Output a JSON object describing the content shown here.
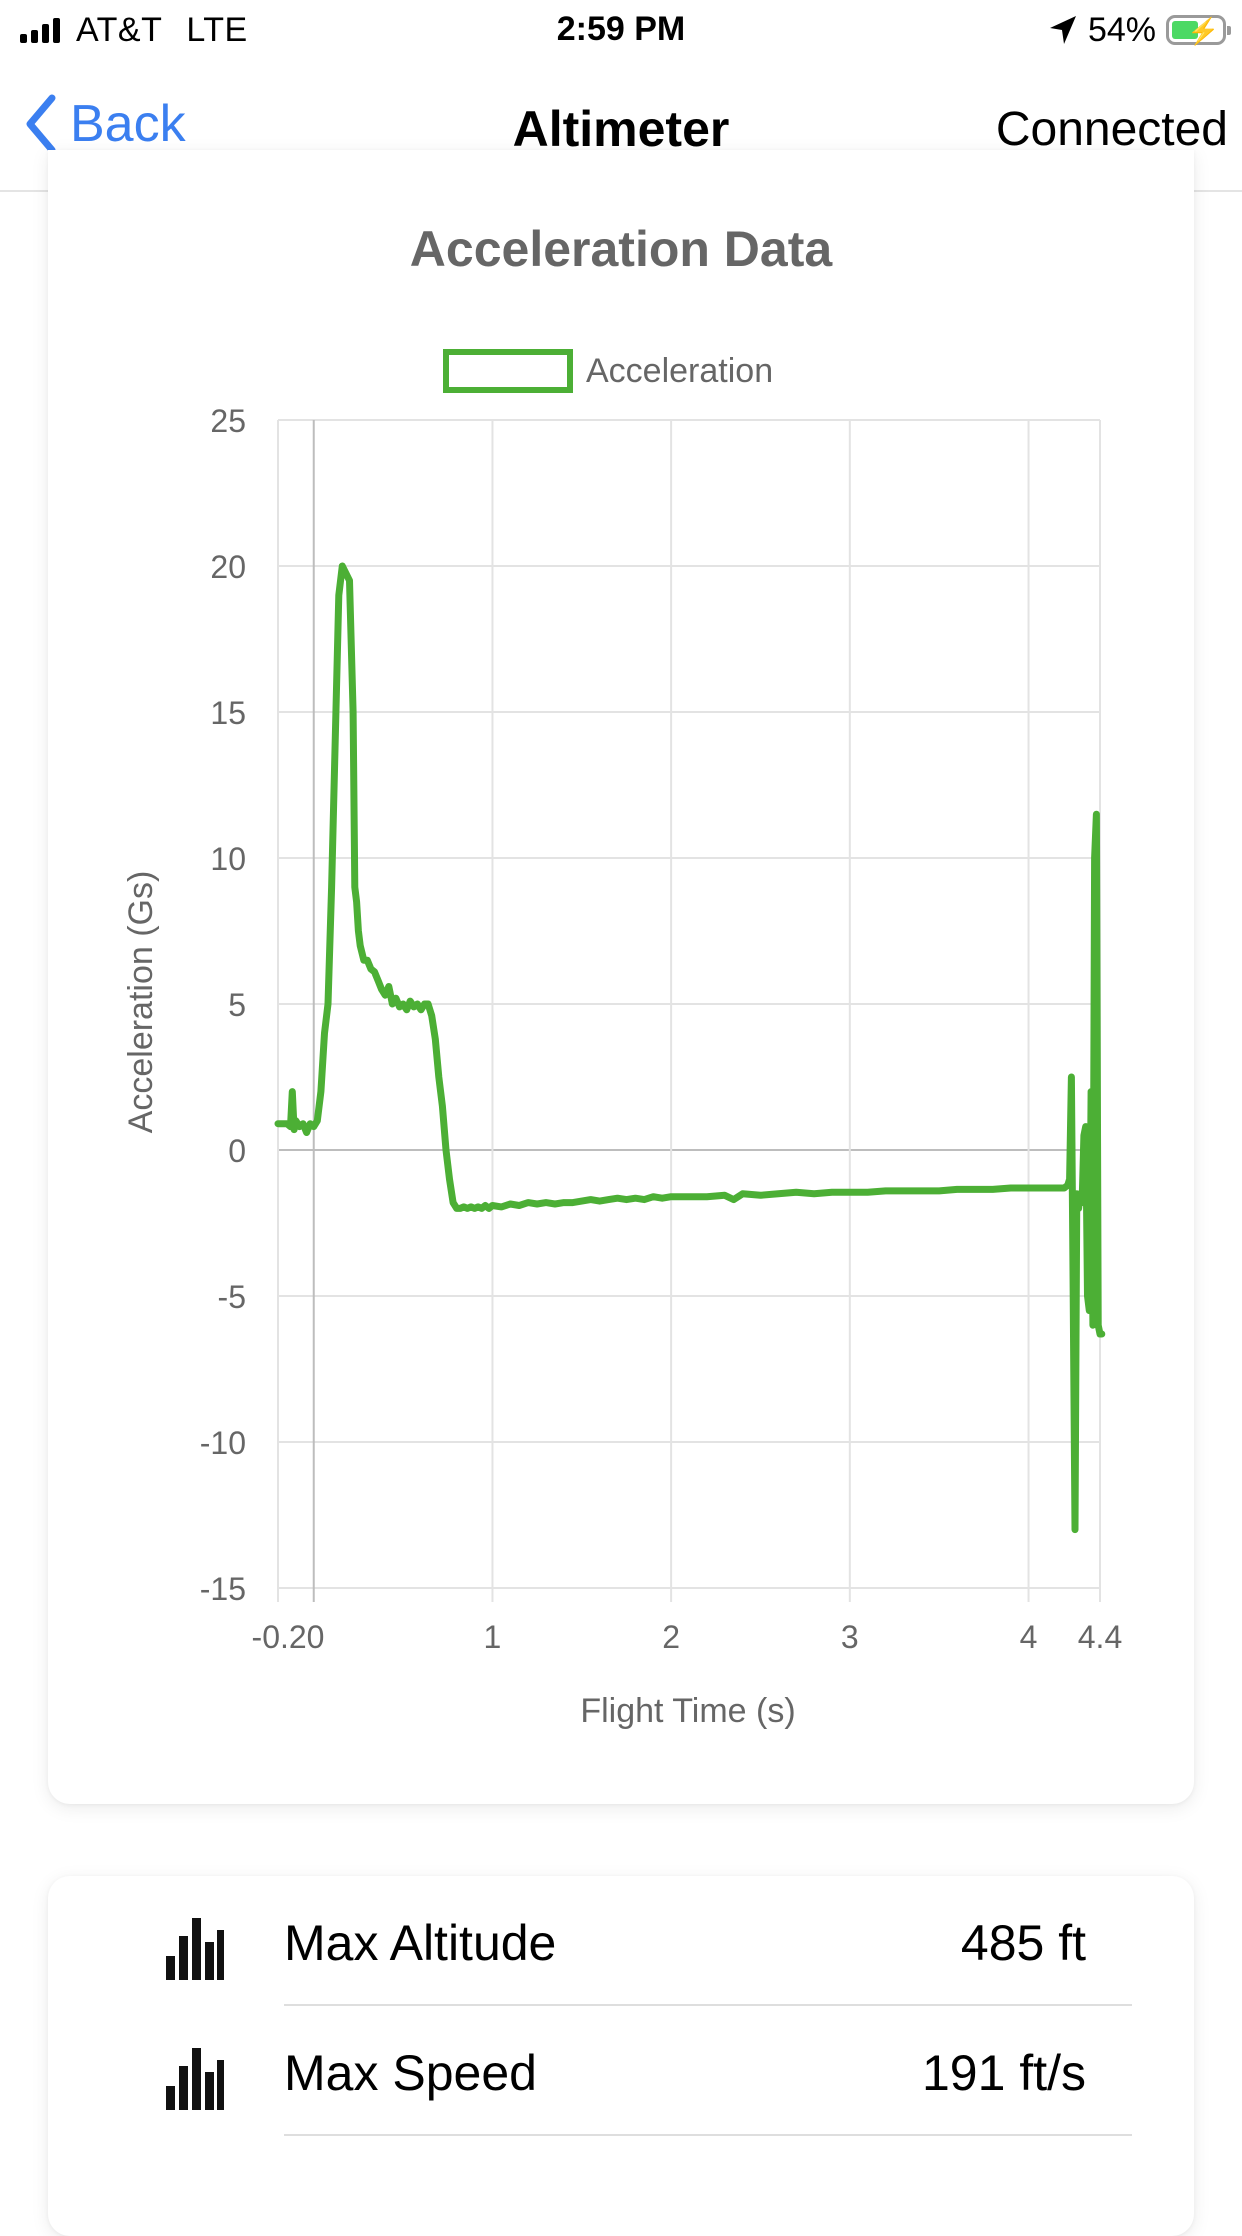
{
  "status_bar": {
    "carrier": "AT&T",
    "network": "LTE",
    "time": "2:59 PM",
    "battery": "54%"
  },
  "nav": {
    "back_label": "Back",
    "title": "Altimeter",
    "status": "Connected"
  },
  "colors": {
    "accent": "#3b7ff0",
    "series": "#4caf35",
    "battery": "#4cd964"
  },
  "chart_data": {
    "type": "line",
    "title": "Acceleration Data",
    "xlabel": "Flight Time (s)",
    "ylabel": "Acceleration (Gs)",
    "legend": "top",
    "grid": true,
    "xlim": [
      -0.2,
      4.4
    ],
    "ylim": [
      -15,
      25
    ],
    "x_ticks": [
      -0.2,
      0,
      1,
      2,
      3,
      4,
      4.4
    ],
    "x_tick_labels": [
      "-0.20",
      "",
      "1",
      "2",
      "3",
      "4",
      "4.4"
    ],
    "y_ticks": [
      25,
      20,
      15,
      10,
      5,
      0,
      -5,
      -10,
      -15
    ],
    "y_tick_labels": [
      "25",
      "20",
      "15",
      "10",
      "5",
      "0",
      "-5",
      "-10",
      "-15"
    ],
    "series": [
      {
        "name": "Acceleration",
        "x": [
          -0.2,
          -0.15,
          -0.13,
          -0.12,
          -0.11,
          -0.1,
          -0.08,
          -0.06,
          -0.04,
          -0.02,
          0.0,
          0.02,
          0.04,
          0.06,
          0.08,
          0.1,
          0.12,
          0.14,
          0.16,
          0.2,
          0.22,
          0.23,
          0.24,
          0.25,
          0.26,
          0.28,
          0.3,
          0.32,
          0.34,
          0.36,
          0.38,
          0.4,
          0.42,
          0.44,
          0.46,
          0.48,
          0.5,
          0.52,
          0.54,
          0.56,
          0.58,
          0.6,
          0.62,
          0.64,
          0.66,
          0.68,
          0.7,
          0.72,
          0.74,
          0.76,
          0.78,
          0.8,
          0.82,
          0.84,
          0.86,
          0.88,
          0.9,
          0.92,
          0.94,
          0.96,
          0.98,
          1.0,
          1.05,
          1.1,
          1.15,
          1.2,
          1.25,
          1.3,
          1.35,
          1.4,
          1.45,
          1.5,
          1.55,
          1.6,
          1.65,
          1.7,
          1.75,
          1.8,
          1.85,
          1.9,
          1.95,
          2.0,
          2.1,
          2.2,
          2.3,
          2.35,
          2.4,
          2.5,
          2.6,
          2.7,
          2.8,
          2.9,
          3.0,
          3.1,
          3.2,
          3.3,
          3.4,
          3.5,
          3.6,
          3.7,
          3.8,
          3.9,
          4.0,
          4.1,
          4.2,
          4.22,
          4.23,
          4.24,
          4.25,
          4.26,
          4.27,
          4.28,
          4.29,
          4.3,
          4.31,
          4.32,
          4.33,
          4.34,
          4.35,
          4.36,
          4.37,
          4.38,
          4.39,
          4.4,
          4.41
        ],
        "y": [
          0.9,
          0.9,
          0.8,
          2.0,
          0.7,
          1.0,
          0.8,
          0.9,
          0.6,
          0.9,
          0.8,
          1.0,
          2.0,
          4.0,
          5.0,
          9.0,
          14.0,
          19.0,
          20.0,
          19.5,
          15.0,
          9.0,
          8.5,
          7.5,
          7.0,
          6.5,
          6.5,
          6.2,
          6.1,
          5.8,
          5.5,
          5.3,
          5.6,
          5.0,
          5.2,
          4.9,
          5.0,
          4.8,
          5.1,
          4.9,
          5.0,
          4.8,
          5.0,
          5.0,
          4.6,
          3.8,
          2.5,
          1.5,
          0.0,
          -1.0,
          -1.8,
          -2.0,
          -2.0,
          -1.95,
          -2.0,
          -1.95,
          -2.0,
          -1.95,
          -2.0,
          -1.9,
          -2.0,
          -1.9,
          -1.95,
          -1.85,
          -1.9,
          -1.8,
          -1.85,
          -1.8,
          -1.85,
          -1.8,
          -1.8,
          -1.75,
          -1.7,
          -1.75,
          -1.7,
          -1.65,
          -1.7,
          -1.65,
          -1.7,
          -1.6,
          -1.65,
          -1.6,
          -1.6,
          -1.6,
          -1.55,
          -1.7,
          -1.5,
          -1.55,
          -1.5,
          -1.45,
          -1.5,
          -1.45,
          -1.45,
          -1.45,
          -1.4,
          -1.4,
          -1.4,
          -1.4,
          -1.35,
          -1.35,
          -1.35,
          -1.3,
          -1.3,
          -1.3,
          -1.3,
          -1.2,
          -1.0,
          2.5,
          -5.0,
          -13.0,
          -1.5,
          -2.0,
          -1.5,
          -1.8,
          0.5,
          0.8,
          -5.0,
          -5.5,
          2.0,
          -6.0,
          10.0,
          11.5,
          -6.0,
          -6.3,
          -6.3
        ]
      }
    ]
  },
  "stats": [
    {
      "label": "Max Altitude",
      "value": "485 ft",
      "icon": "bar-chart-icon"
    },
    {
      "label": "Max Speed",
      "value": "191 ft/s",
      "icon": "bar-chart-icon"
    }
  ]
}
